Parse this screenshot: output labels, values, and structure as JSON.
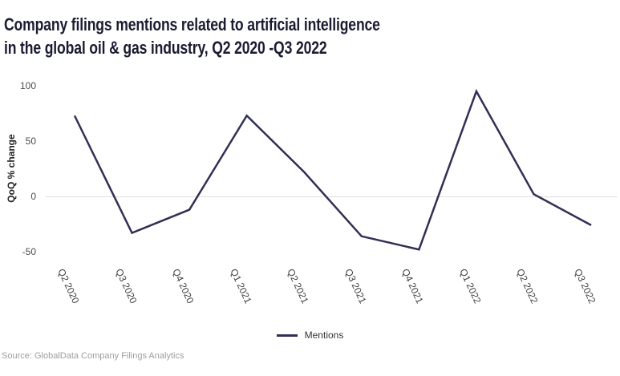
{
  "title": {
    "line1": "Company filings mentions related to artificial intelligence",
    "line2": "in the global oil & gas industry, Q2 2020 -Q3 2022"
  },
  "legend": {
    "label": "Mentions"
  },
  "source": "Source: GlobalData Company Filings Analytics",
  "chart_data": {
    "type": "line",
    "title": "Company filings mentions related to artificial intelligence in the global oil & gas industry, Q2 2020 -Q3 2022",
    "xlabel": "",
    "ylabel": "QoQ % change",
    "categories": [
      "Q2 2020",
      "Q3 2020",
      "Q4 2020",
      "Q1 2021",
      "Q2 2021",
      "Q3 2021",
      "Q4 2021",
      "Q1 2022",
      "Q2 2022",
      "Q3 2022"
    ],
    "series": [
      {
        "name": "Mentions",
        "values": [
          73,
          -33,
          -12,
          73,
          22,
          -36,
          -48,
          95,
          2,
          -26
        ]
      }
    ],
    "ylim": [
      -50,
      100
    ],
    "yticks": [
      100,
      50,
      0,
      -50
    ],
    "grid": "horizontal zero-line only",
    "legend_position": "bottom-center",
    "colors": {
      "line": "#312f54",
      "zero_line": "#e0e0e0",
      "title": "#1b1b32",
      "tick_label": "#3f3f3f",
      "source": "#9e9e9e"
    }
  }
}
